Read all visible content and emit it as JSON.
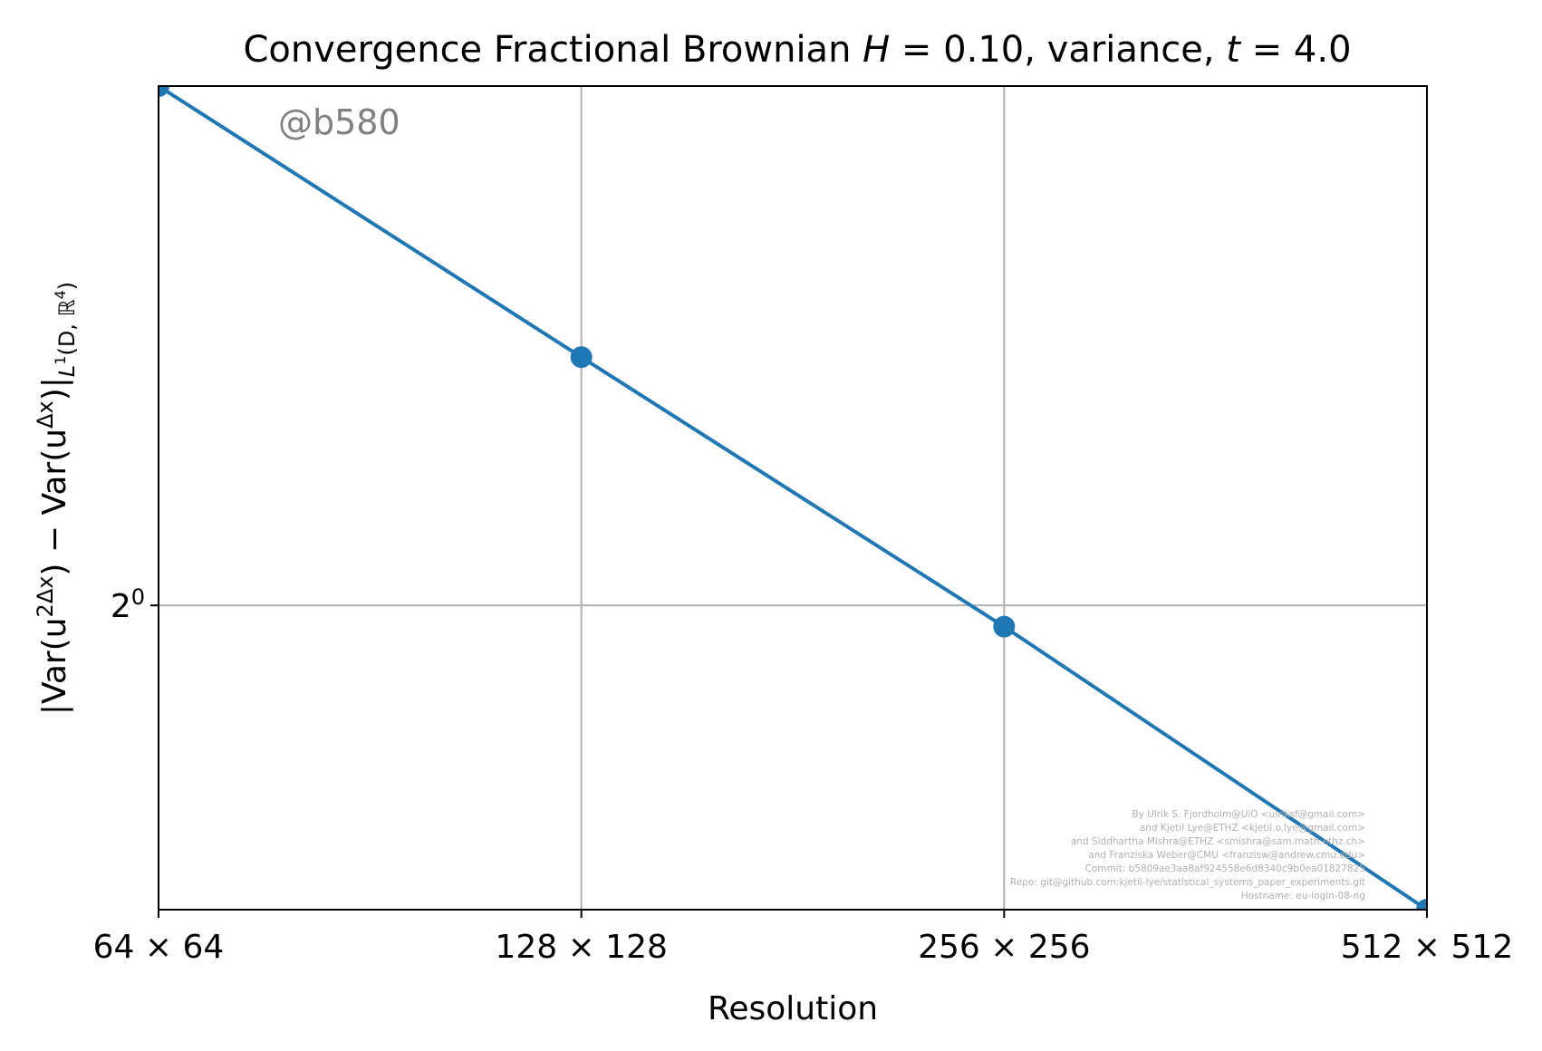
{
  "chart_data": {
    "type": "line",
    "title": {
      "prefix": "Convergence Fractional Brownian ",
      "h_symbol": "H",
      "h_value": " = 0.10, variance, ",
      "t_symbol": "t",
      "t_value": " = 4.0"
    },
    "xlabel": "Resolution",
    "ylabel": {
      "base": "|Var(u",
      "sup1": "2Δx",
      "mid": ") − Var(u",
      "sup2": "Δx",
      "end": ")|",
      "sub": "L",
      "sub_sup": "1",
      "sub_end": "(D, ℝ",
      "sub_sup2": "4",
      "sub_close": ")"
    },
    "x_scale": "log2",
    "y_scale": "log2",
    "categories": [
      "64 × 64",
      "128 × 128",
      "256 × 256",
      "512 × 512"
    ],
    "x": [
      64,
      128,
      256,
      512
    ],
    "series": [
      {
        "values": [
          3.5,
          1.82,
          0.95,
          0.48
        ],
        "color": "#1f77b4"
      }
    ],
    "y_ticks": [
      {
        "value": 1,
        "label_base": "2",
        "label_exp": "0"
      }
    ],
    "xlim": [
      64,
      512
    ],
    "ylim": [
      0.48,
      3.5
    ],
    "grid": true,
    "watermark": "@b580",
    "credits": [
      "By Ulrik S. Fjordholm@UiO <ulriksf@gmail.com>",
      "and Kjetil Lye@ETHZ <kjetil.o.lye@gmail.com>",
      "and Siddhartha Mishra@ETHZ <smishra@sam.math.ethz.ch>",
      "and Franziska Weber@CMU <franzisw@andrew.cmu.edu>",
      "Commit: b5809ae3aa8af924558e6d8340c9b0ea01827825",
      "Repo: git@github.com:kjetil-lye/statistical_systems_paper_experiments.git",
      "Hostname: eu-login-08-ng"
    ]
  }
}
